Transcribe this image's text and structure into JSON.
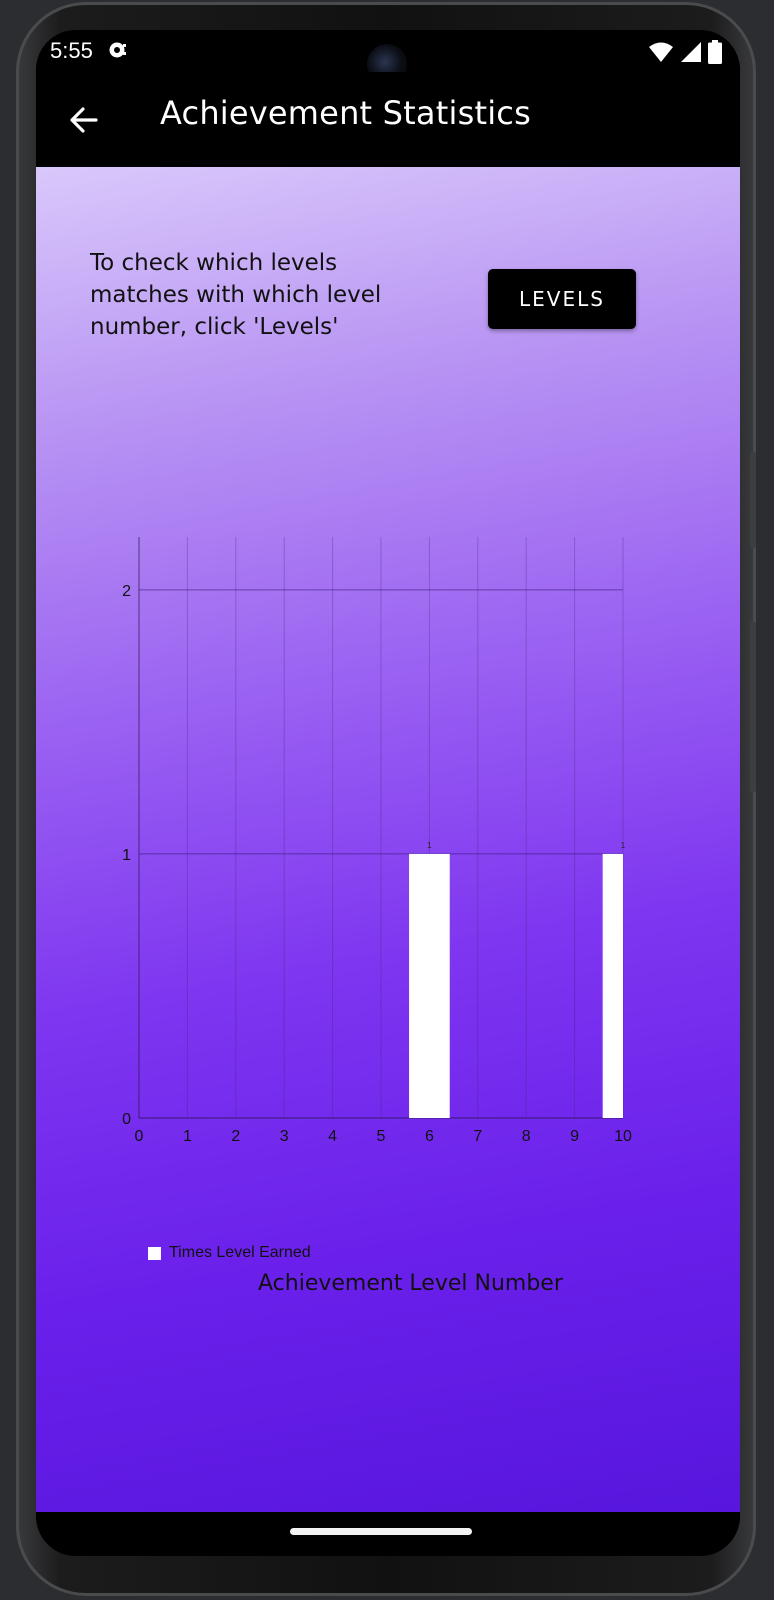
{
  "status_bar": {
    "time": "5:55"
  },
  "app_bar": {
    "title": "Achievement Statistics"
  },
  "info": {
    "text": "To check which levels matches with which level number, click 'Levels'",
    "levels_button": "LEVELS"
  },
  "chart_data": {
    "type": "bar",
    "x": [
      6,
      10
    ],
    "values": [
      1,
      1
    ],
    "x_ticks": [
      "0",
      "1",
      "2",
      "3",
      "4",
      "5",
      "6",
      "7",
      "8",
      "9",
      "10"
    ],
    "y_ticks": [
      "0",
      "1",
      "2"
    ],
    "xlim": [
      0,
      10
    ],
    "ylim": [
      0,
      2.2
    ],
    "xlabel": "Achievement Level Number",
    "ylabel": "",
    "bar_value_labels": [
      "1",
      "1"
    ],
    "series": [
      {
        "name": "Times Level Earned",
        "color": "#ffffff"
      }
    ],
    "legend_position": "bottom-left",
    "grid": true
  },
  "colors": {
    "app_bar": "#000000",
    "bar": "#ffffff",
    "background_top": "#d9c8fb",
    "background_bottom": "#5716dd"
  }
}
